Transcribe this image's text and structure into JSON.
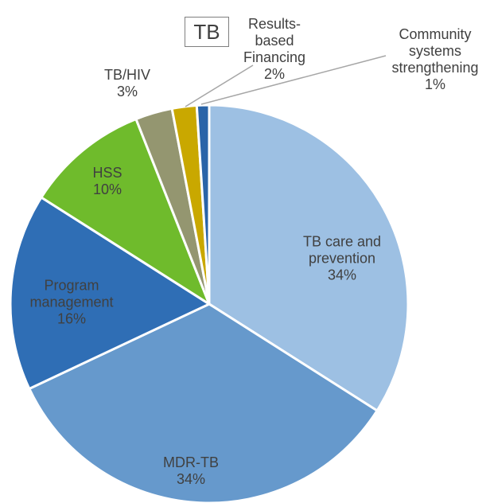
{
  "chart_data": {
    "type": "pie",
    "title": "TB",
    "categories": [
      "TB care and prevention",
      "MDR-TB",
      "Program management",
      "HSS",
      "TB/HIV",
      "Results-based Financing",
      "Community systems strengthening"
    ],
    "values": [
      34,
      34,
      16,
      10,
      3,
      2,
      1
    ],
    "value_labels": [
      "34%",
      "34%",
      "16%",
      "10%",
      "3%",
      "2%",
      "1%"
    ],
    "colors": [
      "#9dc0e3",
      "#6699cc",
      "#2f6eb5",
      "#6fbb2c",
      "#949670",
      "#c9a800",
      "#2a64a8"
    ]
  }
}
